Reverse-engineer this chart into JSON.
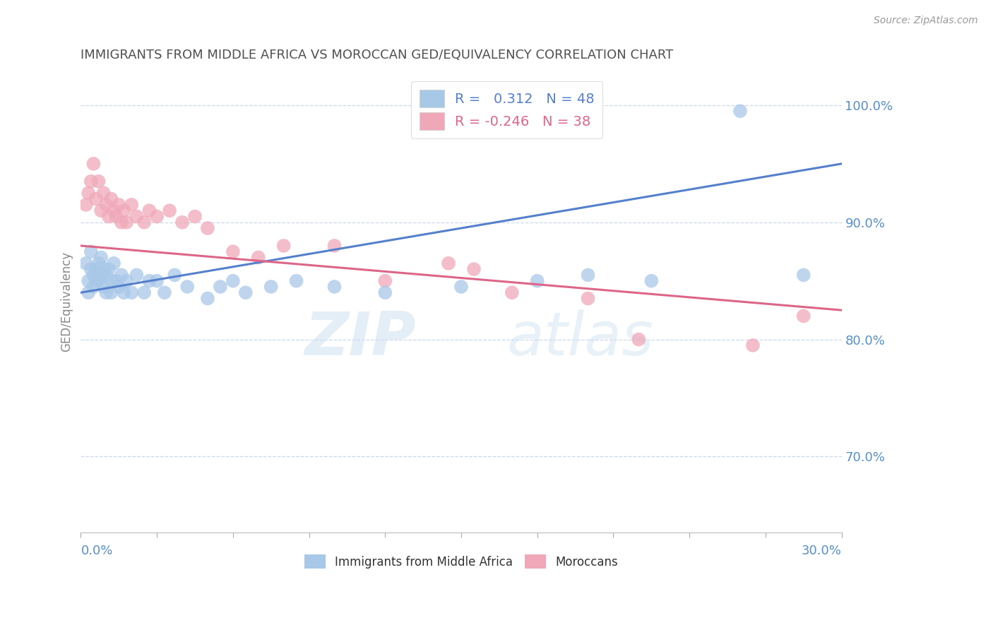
{
  "title": "IMMIGRANTS FROM MIDDLE AFRICA VS MOROCCAN GED/EQUIVALENCY CORRELATION CHART",
  "source": "Source: ZipAtlas.com",
  "ylabel": "GED/Equivalency",
  "xlim": [
    0.0,
    30.0
  ],
  "ylim": [
    63.5,
    103.0
  ],
  "yticks": [
    70.0,
    80.0,
    90.0,
    100.0
  ],
  "blue_R": 0.312,
  "blue_N": 48,
  "pink_R": -0.246,
  "pink_N": 38,
  "blue_color": "#a8c8e8",
  "pink_color": "#f0a8b8",
  "blue_line_color": "#5580cc",
  "pink_line_color": "#dd6688",
  "legend_label_blue": "Immigrants from Middle Africa",
  "legend_label_pink": "Moroccans",
  "blue_dots": [
    [
      0.2,
      86.5
    ],
    [
      0.3,
      85.0
    ],
    [
      0.3,
      84.0
    ],
    [
      0.4,
      87.5
    ],
    [
      0.4,
      86.0
    ],
    [
      0.5,
      85.5
    ],
    [
      0.5,
      84.5
    ],
    [
      0.6,
      86.0
    ],
    [
      0.6,
      85.0
    ],
    [
      0.7,
      86.5
    ],
    [
      0.7,
      85.0
    ],
    [
      0.8,
      87.0
    ],
    [
      0.8,
      85.5
    ],
    [
      0.9,
      86.0
    ],
    [
      0.9,
      84.5
    ],
    [
      1.0,
      85.5
    ],
    [
      1.0,
      84.0
    ],
    [
      1.1,
      86.0
    ],
    [
      1.2,
      85.0
    ],
    [
      1.2,
      84.0
    ],
    [
      1.3,
      86.5
    ],
    [
      1.4,
      85.0
    ],
    [
      1.5,
      84.5
    ],
    [
      1.6,
      85.5
    ],
    [
      1.7,
      84.0
    ],
    [
      1.8,
      85.0
    ],
    [
      2.0,
      84.0
    ],
    [
      2.2,
      85.5
    ],
    [
      2.5,
      84.0
    ],
    [
      2.7,
      85.0
    ],
    [
      3.0,
      85.0
    ],
    [
      3.3,
      84.0
    ],
    [
      3.7,
      85.5
    ],
    [
      4.2,
      84.5
    ],
    [
      5.0,
      83.5
    ],
    [
      5.5,
      84.5
    ],
    [
      6.0,
      85.0
    ],
    [
      6.5,
      84.0
    ],
    [
      7.5,
      84.5
    ],
    [
      8.5,
      85.0
    ],
    [
      10.0,
      84.5
    ],
    [
      12.0,
      84.0
    ],
    [
      15.0,
      84.5
    ],
    [
      18.0,
      85.0
    ],
    [
      20.0,
      85.5
    ],
    [
      22.5,
      85.0
    ],
    [
      26.0,
      99.5
    ],
    [
      28.5,
      85.5
    ]
  ],
  "pink_dots": [
    [
      0.2,
      91.5
    ],
    [
      0.3,
      92.5
    ],
    [
      0.4,
      93.5
    ],
    [
      0.5,
      95.0
    ],
    [
      0.6,
      92.0
    ],
    [
      0.7,
      93.5
    ],
    [
      0.8,
      91.0
    ],
    [
      0.9,
      92.5
    ],
    [
      1.0,
      91.5
    ],
    [
      1.1,
      90.5
    ],
    [
      1.2,
      92.0
    ],
    [
      1.3,
      91.0
    ],
    [
      1.4,
      90.5
    ],
    [
      1.5,
      91.5
    ],
    [
      1.6,
      90.0
    ],
    [
      1.7,
      91.0
    ],
    [
      1.8,
      90.0
    ],
    [
      2.0,
      91.5
    ],
    [
      2.2,
      90.5
    ],
    [
      2.5,
      90.0
    ],
    [
      2.7,
      91.0
    ],
    [
      3.0,
      90.5
    ],
    [
      3.5,
      91.0
    ],
    [
      4.0,
      90.0
    ],
    [
      4.5,
      90.5
    ],
    [
      5.0,
      89.5
    ],
    [
      6.0,
      87.5
    ],
    [
      7.0,
      87.0
    ],
    [
      8.0,
      88.0
    ],
    [
      10.0,
      88.0
    ],
    [
      12.0,
      85.0
    ],
    [
      14.5,
      86.5
    ],
    [
      15.5,
      86.0
    ],
    [
      17.0,
      84.0
    ],
    [
      20.0,
      83.5
    ],
    [
      22.0,
      80.0
    ],
    [
      26.5,
      79.5
    ],
    [
      28.5,
      82.0
    ]
  ],
  "blue_line": [
    [
      0,
      84.0
    ],
    [
      30,
      95.0
    ]
  ],
  "pink_line": [
    [
      0,
      88.0
    ],
    [
      30,
      82.5
    ]
  ],
  "watermark_zip": "ZIP",
  "watermark_atlas": "atlas",
  "background_color": "#ffffff",
  "grid_color": "#c8d8e8",
  "title_color": "#505050",
  "axis_label_color": "#5590cc",
  "ylabel_color": "#888888"
}
